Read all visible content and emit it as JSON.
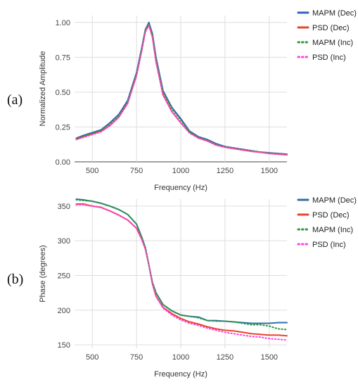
{
  "panels": [
    {
      "label": "(a)",
      "chart_data": {
        "type": "line",
        "xlabel": "Frequency (Hz)",
        "ylabel": "Normalized Amplitude",
        "xlim": [
          400,
          1600
        ],
        "ylim": [
          0,
          1.05
        ],
        "xticks": [
          500,
          750,
          1000,
          1250,
          1500
        ],
        "yticks": [
          0,
          0.25,
          0.5,
          0.75,
          1
        ],
        "xtick_labels": [
          "500",
          "750",
          "1000",
          "1250",
          "1500"
        ],
        "ytick_labels": [
          "0.00",
          "0.25",
          "0.50",
          "0.75",
          "1.00"
        ],
        "grid": true,
        "legend_position": "right",
        "series": [
          {
            "name": "MAPM (Dec)",
            "color": "#3a5dbf",
            "style": "solid",
            "x": [
              410,
              450,
              500,
              550,
              600,
              650,
              700,
              750,
              780,
              800,
              820,
              840,
              860,
              900,
              950,
              1000,
              1050,
              1100,
              1150,
              1200,
              1250,
              1300,
              1350,
              1400,
              1450,
              1500,
              1550,
              1600
            ],
            "y": [
              0.17,
              0.19,
              0.21,
              0.23,
              0.28,
              0.34,
              0.44,
              0.64,
              0.82,
              0.95,
              1.0,
              0.92,
              0.75,
              0.51,
              0.39,
              0.31,
              0.22,
              0.18,
              0.16,
              0.13,
              0.11,
              0.1,
              0.09,
              0.08,
              0.07,
              0.065,
              0.06,
              0.055
            ]
          },
          {
            "name": "PSD (Dec)",
            "color": "#e8452c",
            "style": "solid",
            "x": [
              410,
              450,
              500,
              550,
              600,
              650,
              700,
              750,
              780,
              800,
              820,
              840,
              860,
              900,
              950,
              1000,
              1050,
              1100,
              1150,
              1200,
              1250,
              1300,
              1350,
              1400,
              1450,
              1500,
              1550,
              1600
            ],
            "y": [
              0.16,
              0.18,
              0.2,
              0.22,
              0.26,
              0.32,
              0.42,
              0.62,
              0.8,
              0.94,
              0.98,
              0.9,
              0.72,
              0.48,
              0.36,
              0.28,
              0.21,
              0.17,
              0.15,
              0.12,
              0.105,
              0.095,
              0.085,
              0.075,
              0.068,
              0.06,
              0.055,
              0.05
            ]
          },
          {
            "name": "MAPM (Inc)",
            "color": "#2e9a3c",
            "style": "dotted",
            "x": [
              410,
              450,
              500,
              550,
              600,
              650,
              700,
              750,
              780,
              800,
              820,
              840,
              860,
              900,
              950,
              1000,
              1050,
              1100,
              1150,
              1200,
              1250,
              1300,
              1350,
              1400,
              1450,
              1500,
              1550,
              1600
            ],
            "y": [
              0.165,
              0.185,
              0.205,
              0.225,
              0.27,
              0.33,
              0.43,
              0.63,
              0.81,
              0.95,
              0.99,
              0.91,
              0.74,
              0.5,
              0.38,
              0.3,
              0.215,
              0.175,
              0.155,
              0.125,
              0.108,
              0.098,
              0.088,
              0.078,
              0.07,
              0.063,
              0.058,
              0.052
            ]
          },
          {
            "name": "PSD (Inc)",
            "color": "#ff44dd",
            "style": "dotted",
            "x": [
              410,
              450,
              500,
              550,
              600,
              650,
              700,
              750,
              780,
              800,
              820,
              840,
              860,
              900,
              950,
              1000,
              1050,
              1100,
              1150,
              1200,
              1250,
              1300,
              1350,
              1400,
              1450,
              1500,
              1550,
              1600
            ],
            "y": [
              0.16,
              0.175,
              0.195,
              0.215,
              0.26,
              0.32,
              0.42,
              0.62,
              0.8,
              0.93,
              0.98,
              0.89,
              0.72,
              0.48,
              0.36,
              0.28,
              0.205,
              0.17,
              0.15,
              0.12,
              0.105,
              0.095,
              0.085,
              0.075,
              0.068,
              0.06,
              0.055,
              0.05
            ]
          }
        ]
      }
    },
    {
      "label": "(b)",
      "chart_data": {
        "type": "line",
        "xlabel": "Frequency (Hz)",
        "ylabel": "Phase (degrees)",
        "xlim": [
          400,
          1600
        ],
        "ylim": [
          145,
          360
        ],
        "xticks": [
          500,
          750,
          1000,
          1250,
          1500
        ],
        "yticks": [
          150,
          200,
          250,
          300,
          350
        ],
        "xtick_labels": [
          "500",
          "750",
          "1000",
          "1250",
          "1500"
        ],
        "ytick_labels": [
          "150",
          "200",
          "250",
          "300",
          "350"
        ],
        "grid": true,
        "legend_position": "right",
        "series": [
          {
            "name": "MAPM (Dec)",
            "color": "#2f6fa8",
            "style": "solid",
            "x": [
              410,
              450,
              500,
              550,
              600,
              650,
              700,
              750,
              780,
              800,
              820,
              840,
              860,
              900,
              950,
              1000,
              1050,
              1100,
              1150,
              1200,
              1250,
              1300,
              1350,
              1400,
              1450,
              1500,
              1550,
              1600
            ],
            "y": [
              360,
              359,
              357,
              354,
              350,
              345,
              338,
              324,
              305,
              290,
              265,
              240,
              225,
              208,
              199,
              193,
              191,
              190,
              185,
              185,
              184,
              183,
              182,
              181,
              181,
              181,
              182,
              182
            ]
          },
          {
            "name": "PSD (Dec)",
            "color": "#e8452c",
            "style": "solid",
            "x": [
              410,
              450,
              500,
              550,
              600,
              650,
              700,
              750,
              780,
              800,
              820,
              840,
              860,
              900,
              950,
              1000,
              1050,
              1100,
              1150,
              1200,
              1250,
              1300,
              1350,
              1400,
              1450,
              1500,
              1550,
              1600
            ],
            "y": [
              353,
              353,
              350,
              348,
              343,
              337,
              330,
              318,
              302,
              288,
              265,
              238,
              220,
              204,
              195,
              188,
              183,
              180,
              176,
              173,
              171,
              170,
              168,
              166,
              165,
              164,
              164,
              163
            ]
          },
          {
            "name": "MAPM (Inc)",
            "color": "#2e9a3c",
            "style": "dotted",
            "x": [
              410,
              450,
              500,
              550,
              600,
              650,
              700,
              750,
              780,
              800,
              820,
              840,
              860,
              900,
              950,
              1000,
              1050,
              1100,
              1150,
              1200,
              1250,
              1300,
              1350,
              1400,
              1450,
              1500,
              1550,
              1600
            ],
            "y": [
              359,
              358,
              357,
              354,
              350,
              345,
              338,
              324,
              305,
              290,
              265,
              240,
              225,
              208,
              199,
              193,
              191,
              189,
              185,
              184,
              184,
              183,
              181,
              179,
              179,
              177,
              173,
              172
            ]
          },
          {
            "name": "PSD (Inc)",
            "color": "#ff44dd",
            "style": "dotted",
            "x": [
              410,
              450,
              500,
              550,
              600,
              650,
              700,
              750,
              780,
              800,
              820,
              840,
              860,
              900,
              950,
              1000,
              1050,
              1100,
              1150,
              1200,
              1250,
              1300,
              1350,
              1400,
              1450,
              1500,
              1550,
              1600
            ],
            "y": [
              352,
              352,
              350,
              348,
              343,
              337,
              330,
              318,
              302,
              288,
              265,
              238,
              220,
              203,
              193,
              186,
              181,
              178,
              174,
              171,
              168,
              166,
              164,
              162,
              161,
              159,
              158,
              157
            ]
          }
        ]
      }
    }
  ]
}
